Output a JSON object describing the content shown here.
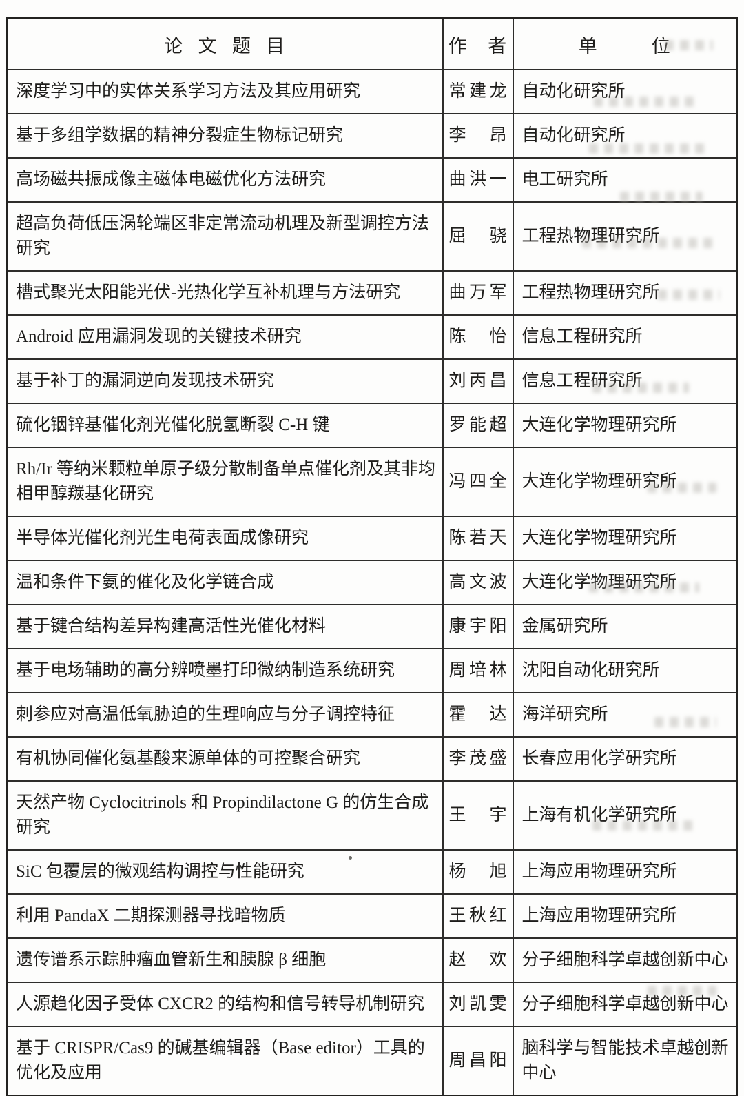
{
  "table": {
    "columns": [
      "论 文 题 目",
      "作 者",
      "单 位"
    ],
    "rows": [
      {
        "title": "深度学习中的实体关系学习方法及其应用研究",
        "author": "常建龙",
        "unit": "自动化研究所"
      },
      {
        "title": "基于多组学数据的精神分裂症生物标记研究",
        "author": "李　昂",
        "unit": "自动化研究所"
      },
      {
        "title": "高场磁共振成像主磁体电磁优化方法研究",
        "author": "曲洪一",
        "unit": "电工研究所"
      },
      {
        "title": "超高负荷低压涡轮端区非定常流动机理及新型调控方法研究",
        "author": "屈　骁",
        "unit": "工程热物理研究所"
      },
      {
        "title": "槽式聚光太阳能光伏-光热化学互补机理与方法研究",
        "author": "曲万军",
        "unit": "工程热物理研究所"
      },
      {
        "title": "Android 应用漏洞发现的关键技术研究",
        "author": "陈　怡",
        "unit": "信息工程研究所"
      },
      {
        "title": "基于补丁的漏洞逆向发现技术研究",
        "author": "刘丙昌",
        "unit": "信息工程研究所"
      },
      {
        "title": "硫化铟锌基催化剂光催化脱氢断裂 C-H 键",
        "author": "罗能超",
        "unit": "大连化学物理研究所"
      },
      {
        "title": "Rh/Ir 等纳米颗粒单原子级分散制备单点催化剂及其非均相甲醇羰基化研究",
        "author": "冯四全",
        "unit": "大连化学物理研究所"
      },
      {
        "title": "半导体光催化剂光生电荷表面成像研究",
        "author": "陈若天",
        "unit": "大连化学物理研究所"
      },
      {
        "title": "温和条件下氨的催化及化学链合成",
        "author": "高文波",
        "unit": "大连化学物理研究所"
      },
      {
        "title": "基于键合结构差异构建高活性光催化材料",
        "author": "康宇阳",
        "unit": "金属研究所"
      },
      {
        "title": "基于电场辅助的高分辨喷墨打印微纳制造系统研究",
        "author": "周培林",
        "unit": "沈阳自动化研究所"
      },
      {
        "title": "刺参应对高温低氧胁迫的生理响应与分子调控特征",
        "author": "霍　达",
        "unit": "海洋研究所"
      },
      {
        "title": "有机协同催化氨基酸来源单体的可控聚合研究",
        "author": "李茂盛",
        "unit": "长春应用化学研究所"
      },
      {
        "title": "天然产物 Cyclocitrinols 和 Propindilactone G 的仿生合成研究",
        "author": "王　宇",
        "unit": "上海有机化学研究所"
      },
      {
        "title": "SiC 包覆层的微观结构调控与性能研究",
        "author": "杨　旭",
        "unit": "上海应用物理研究所"
      },
      {
        "title": "利用 PandaX 二期探测器寻找暗物质",
        "author": "王秋红",
        "unit": "上海应用物理研究所"
      },
      {
        "title": "遗传谱系示踪肿瘤血管新生和胰腺 β 细胞",
        "author": "赵　欢",
        "unit": "分子细胞科学卓越创新中心"
      },
      {
        "title": "人源趋化因子受体 CXCR2 的结构和信号转导机制研究",
        "author": "刘凯雯",
        "unit": "分子细胞科学卓越创新中心"
      },
      {
        "title": "基于 CRISPR/Cas9 的碱基编辑器（Base editor）工具的优化及应用",
        "author": "周昌阳",
        "unit": "脑科学与智能技术卓越创新中心"
      }
    ]
  }
}
